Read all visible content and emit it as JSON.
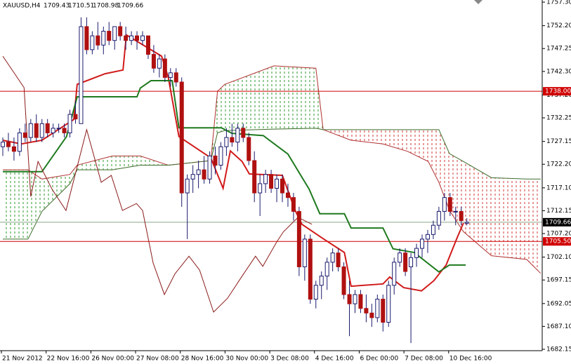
{
  "chart_data": {
    "type": "candlestick",
    "symbol": "XAUUSD,H4",
    "categories": [
      "21 Nov 2012",
      null,
      null,
      null,
      null,
      null,
      null,
      null,
      "22 Nov 16:00",
      null,
      null,
      null,
      null,
      null,
      null,
      null,
      "26 Nov 00:00",
      null,
      null,
      null,
      null,
      null,
      null,
      null,
      "27 Nov 08:00",
      null,
      null,
      null,
      null,
      null,
      null,
      null,
      "28 Nov 16:00",
      null,
      null,
      null,
      null,
      null,
      null,
      null,
      "30 Nov 00:00",
      null,
      null,
      null,
      null,
      null,
      null,
      null,
      "3 Dec 08:00",
      null,
      null,
      null,
      null,
      null,
      null,
      null,
      "4 Dec 16:00",
      null,
      null,
      null,
      null,
      null,
      null,
      null,
      "6 Dec 00:00",
      null,
      null,
      null,
      null,
      null,
      null,
      null,
      "7 Dec 08:00",
      null,
      null,
      null,
      null,
      null,
      null,
      null,
      "10 Dec 16:00",
      null,
      null,
      null
    ],
    "open": [
      1726,
      1727,
      1726,
      1725,
      1729,
      1728,
      1731,
      1728,
      1731,
      1729,
      1730,
      1730,
      1729,
      1733,
      1731,
      1752,
      1747,
      1750,
      1748,
      1751,
      1749,
      1752,
      1750,
      1749,
      1750,
      1749,
      1750,
      1746,
      1743,
      1745,
      1741,
      1742,
      1740,
      1716,
      1719,
      1720,
      1721,
      1719,
      1724,
      1722,
      1726,
      1728,
      1727,
      1730,
      1728,
      1723,
      1716,
      1718,
      1720,
      1717,
      1719,
      1716,
      1715,
      1712,
      1700,
      1706,
      1693,
      1696,
      1698,
      1701,
      1703,
      1700,
      1694,
      1692,
      1694,
      1691,
      1690,
      1689,
      1693,
      1688,
      1696,
      1701,
      1703,
      1700,
      1702,
      1704,
      1706,
      1707,
      1709,
      1712,
      1715,
      1712,
      1712,
      1709.43
    ],
    "high": [
      1728,
      1729,
      1728,
      1730,
      1731,
      1732,
      1733,
      1732,
      1732,
      1731,
      1731,
      1731,
      1734,
      1736,
      1754,
      1754,
      1751,
      1753,
      1752,
      1753,
      1752,
      1753,
      1752,
      1751,
      1751,
      1751,
      1750,
      1748,
      1746,
      1746,
      1743,
      1743,
      1741,
      1720,
      1722,
      1723,
      1724,
      1725,
      1726,
      1727,
      1730,
      1731,
      1731,
      1731,
      1729,
      1725,
      1720,
      1721,
      1721,
      1720,
      1720,
      1718,
      1716,
      1713,
      1707,
      1707,
      1697,
      1699,
      1702,
      1704,
      1704,
      1701,
      1697,
      1695,
      1695,
      1694,
      1692,
      1694,
      1694,
      1697,
      1702,
      1704,
      1704,
      1703,
      1705,
      1707,
      1708,
      1710,
      1713,
      1716,
      1716,
      1713,
      1713,
      1710.51
    ],
    "low": [
      1724,
      1725,
      1723,
      1724,
      1727,
      1727,
      1727,
      1727,
      1728,
      1728,
      1729,
      1728,
      1728,
      1731,
      1731,
      1746,
      1746,
      1747,
      1746,
      1748,
      1747,
      1749,
      1747,
      1748,
      1747,
      1748,
      1745,
      1742,
      1741,
      1740,
      1739,
      1739,
      1713,
      1706,
      1716,
      1717,
      1718,
      1718,
      1720,
      1721,
      1724,
      1726,
      1725,
      1727,
      1722,
      1714,
      1711,
      1716,
      1716,
      1714,
      1714,
      1713,
      1710,
      1698,
      1697,
      1692,
      1691,
      1693,
      1695,
      1699,
      1699,
      1693,
      1685,
      1690,
      1690,
      1688,
      1687,
      1688,
      1686,
      1687,
      1694,
      1700,
      1698,
      1683.5,
      1700,
      1702,
      1703,
      1706,
      1708,
      1710,
      1711,
      1709,
      1709,
      1708.98
    ],
    "close": [
      1727,
      1726,
      1725,
      1729,
      1728,
      1731,
      1728,
      1731,
      1729,
      1730,
      1730,
      1729,
      1733,
      1732,
      1752,
      1747,
      1750,
      1748,
      1751,
      1749,
      1752,
      1750,
      1749,
      1750,
      1749,
      1750,
      1746,
      1743,
      1745,
      1741,
      1742,
      1740,
      1716,
      1719,
      1720,
      1721,
      1719,
      1724,
      1722,
      1726,
      1728,
      1727,
      1730,
      1728,
      1723,
      1716,
      1718,
      1720,
      1717,
      1719,
      1716,
      1715,
      1712,
      1700,
      1706,
      1693,
      1696,
      1698,
      1701,
      1703,
      1700,
      1694,
      1692,
      1694,
      1691,
      1690,
      1689,
      1693,
      1688,
      1696,
      1701,
      1703,
      1699,
      1702,
      1704,
      1706,
      1707,
      1709,
      1712,
      1715,
      1712,
      1712,
      1710,
      1709.66
    ],
    "up_color": "#ffffff",
    "down_color": "#b01010",
    "outline_color": "#1a1a6e",
    "lines": [
      {
        "color": "#d11a1a",
        "width": 2,
        "x": [
          0,
          3.3,
          7,
          10.8,
          12.7,
          13.3,
          18.3,
          21.5,
          22.1,
          28.4,
          29.6,
          31.5,
          37.2,
          39.4,
          40.7,
          42.8,
          44.1,
          50,
          52.3,
          53.5,
          57.3,
          61.1,
          62.3,
          68,
          69.2,
          71.7,
          74.9,
          77.1,
          79.3,
          81.2,
          82.4
        ],
        "values": [
          1727.4,
          1726.6,
          1727.4,
          1730.4,
          1731.9,
          1739.5,
          1741.8,
          1742.6,
          1750.2,
          1745.6,
          1741,
          1728.2,
          1723.6,
          1717,
          1725.1,
          1722.8,
          1720.1,
          1719.8,
          1712.2,
          1709.2,
          1706.1,
          1703.1,
          1695.8,
          1696.3,
          1697.8,
          1695.5,
          1694.8,
          1697,
          1700.4,
          1706.1,
          1709.5
        ]
      },
      {
        "color": "#1f7a1f",
        "width": 2,
        "x": [
          0,
          7,
          11.4,
          13.3,
          24,
          24.6,
          26.5,
          30.3,
          31.5,
          39.1,
          41,
          46.6,
          51,
          54.8,
          56.7,
          61.1,
          62.3,
          68,
          69.8,
          73.6,
          78,
          79.9,
          82.8
        ],
        "values": [
          1720.6,
          1720.6,
          1728.2,
          1736.8,
          1736.8,
          1738.7,
          1740.3,
          1740.3,
          1730.1,
          1730.1,
          1728.9,
          1728.4,
          1724.4,
          1716.8,
          1711.5,
          1711.5,
          1708.4,
          1708.4,
          1703.9,
          1703.1,
          1698.9,
          1700.4,
          1700.4
        ]
      },
      {
        "color": "#8b1a1a",
        "width": 1,
        "x": [
          0,
          3.8,
          5,
          6.3,
          8.8,
          11.3,
          15,
          17.6,
          19.4,
          21.4,
          23.9,
          25,
          26.9,
          28.9,
          30.8,
          33.3,
          35.2,
          37.7,
          40.2,
          42.7,
          45.2,
          46.5,
          49,
          50.2,
          52.8,
          55.3
        ],
        "values": [
          1745.6,
          1738.8,
          1715.2,
          1722.8,
          1716.8,
          1712.2,
          1729.7,
          1718.3,
          1719.8,
          1712.2,
          1713.7,
          1712.2,
          1700.8,
          1694.0,
          1698.5,
          1702.3,
          1699.3,
          1690.2,
          1693.2,
          1697.8,
          1702.3,
          1700.1,
          1705.4,
          1707.6,
          1710.7,
          1709.2
        ]
      }
    ],
    "cloud": {
      "x": [
        0,
        4.5,
        7,
        12,
        13.3,
        19.6,
        24.6,
        29.6,
        37.2,
        38.4,
        39.7,
        48.5,
        56,
        57.3,
        62.3,
        68,
        72.4,
        76.1,
        78,
        79.9,
        82.4,
        87.4,
        93.7,
        96.2
      ],
      "span_a": [
        1721,
        1721,
        1719,
        1720,
        1722,
        1724,
        1724,
        1722,
        1723,
        1738,
        1739.5,
        1743.5,
        1743,
        1729.7,
        1727.4,
        1726.6,
        1725,
        1722.8,
        1718.3,
        1712.2,
        1707.6,
        1702.4,
        1701.6,
        1698.6
      ],
      "span_b": [
        1706,
        1706,
        1712,
        1718,
        1721,
        1721,
        1722,
        1722,
        1723,
        1729,
        1729.5,
        1729.8,
        1730,
        1729.7,
        1729.7,
        1729.7,
        1729.7,
        1729.7,
        1729.7,
        1724.5,
        1722.8,
        1719.3,
        1719,
        1719
      ],
      "span_a_color": "#b03030",
      "span_b_color": "#3d6b2a",
      "bull_color": "#2e9a2e",
      "bear_color": "#d03a3a"
    },
    "hlines": [
      {
        "value": 1738,
        "label": "1738.00",
        "color": "#d00000"
      },
      {
        "value": 1705.5,
        "label": "1705.50",
        "color": "#d00000"
      }
    ],
    "current": {
      "value": 1709.66,
      "label": "1709.66",
      "color": "#8aa88a"
    },
    "ylim": [
      1681.85,
      1757.76
    ],
    "yticks": [
      {
        "value": 1757.3,
        "label": "1757.30"
      },
      {
        "value": 1752.2,
        "label": "1752.20"
      },
      {
        "value": 1747.25,
        "label": "1747.25"
      },
      {
        "value": 1742.3,
        "label": "1742.30"
      },
      {
        "value": 1737.2,
        "label": "1737.20"
      },
      {
        "value": 1732.25,
        "label": "1732.25"
      },
      {
        "value": 1727.15,
        "label": "1727.15"
      },
      {
        "value": 1722.2,
        "label": "1722.20"
      },
      {
        "value": 1717.1,
        "label": "1717.10"
      },
      {
        "value": 1712.15,
        "label": "1712.15"
      },
      {
        "value": 1707.2,
        "label": "1707.20"
      },
      {
        "value": 1702.1,
        "label": "1702.10"
      },
      {
        "value": 1697.15,
        "label": "1697.15"
      },
      {
        "value": 1692.05,
        "label": "1692.05"
      },
      {
        "value": 1687.1,
        "label": "1687.10"
      },
      {
        "value": 1682.15,
        "label": "1682.15"
      }
    ]
  }
}
